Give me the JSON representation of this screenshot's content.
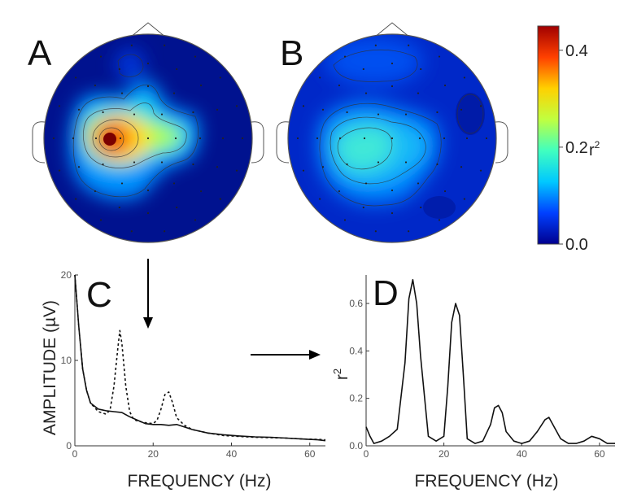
{
  "panels": {
    "A": {
      "letter": "A"
    },
    "B": {
      "letter": "B"
    },
    "C": {
      "letter": "C"
    },
    "D": {
      "letter": "D"
    }
  },
  "colorbar": {
    "ticks": [
      "0.4",
      "0.2",
      "0.0"
    ],
    "tick_values": [
      0.4,
      0.2,
      0.0
    ],
    "range": [
      0.0,
      0.45
    ],
    "label": "r",
    "label_sup": "2",
    "colors": [
      "#00008f",
      "#0040ff",
      "#00c8ff",
      "#40ffbf",
      "#c0ff40",
      "#ffd000",
      "#ff4000",
      "#a00000"
    ]
  },
  "chart_data": [
    {
      "type": "heatmap",
      "panel": "A",
      "description_kind": "scalp topography",
      "peak_value": 0.45
    },
    {
      "type": "heatmap",
      "panel": "B",
      "description_kind": "scalp topography",
      "peak_value": 0.25
    },
    {
      "type": "line",
      "panel": "C",
      "xlabel": "FREQUENCY (Hz)",
      "ylabel": "AMPLITUDE (µV)",
      "xlim": [
        0,
        64
      ],
      "ylim": [
        0,
        20
      ],
      "xticks": [
        0,
        20,
        40,
        60
      ],
      "xtick_labels": [
        "0",
        "20",
        "40",
        "60"
      ],
      "yticks": [
        0,
        10,
        20
      ],
      "ytick_labels": [
        "0",
        "10",
        "20"
      ],
      "series": [
        {
          "style": "solid",
          "x": [
            0,
            1,
            2,
            3,
            4,
            6,
            8,
            10,
            12,
            14,
            16,
            18,
            20,
            22,
            24,
            26,
            28,
            30,
            34,
            38,
            42,
            46,
            50,
            54,
            58,
            62,
            64
          ],
          "values": [
            20,
            14,
            9,
            6.5,
            5,
            4.3,
            4.1,
            4.0,
            3.9,
            3.4,
            3.0,
            2.6,
            2.5,
            2.5,
            2.4,
            2.5,
            2.2,
            1.9,
            1.5,
            1.3,
            1.15,
            1.05,
            1.0,
            0.9,
            0.8,
            0.7,
            0.6
          ]
        },
        {
          "style": "dashed",
          "x": [
            0,
            1,
            2,
            3,
            4,
            6,
            8,
            9,
            10,
            11,
            11.5,
            12,
            13,
            14,
            15,
            16,
            18,
            20,
            21,
            22,
            23,
            24,
            25,
            26,
            28,
            30,
            34,
            38,
            42,
            46,
            50,
            54,
            58,
            62,
            64
          ],
          "values": [
            20,
            14,
            9,
            6.5,
            5,
            4.0,
            3.7,
            4.2,
            7.0,
            11.5,
            13.5,
            12.0,
            7.0,
            4.0,
            3.1,
            2.9,
            2.7,
            2.6,
            3.0,
            4.3,
            6.0,
            6.3,
            5.0,
            3.3,
            2.4,
            1.9,
            1.5,
            1.2,
            1.1,
            1.0,
            0.95,
            0.9,
            0.8,
            0.75,
            0.7
          ]
        }
      ]
    },
    {
      "type": "line",
      "panel": "D",
      "xlabel": "FREQUENCY (Hz)",
      "ylabel": "r",
      "ylabel_sup": "2",
      "xlim": [
        0,
        64
      ],
      "ylim": [
        0,
        0.72
      ],
      "xticks": [
        0,
        20,
        40,
        60
      ],
      "xtick_labels": [
        "0",
        "20",
        "40",
        "60"
      ],
      "yticks": [
        0,
        0.2,
        0.4,
        0.6
      ],
      "ytick_labels": [
        "0.0",
        "0.2",
        "0.4",
        "0.6"
      ],
      "series": [
        {
          "style": "solid",
          "x": [
            0,
            1,
            2,
            4,
            6,
            8,
            10,
            11,
            12,
            13,
            14,
            16,
            18,
            20,
            21,
            22,
            23,
            24,
            25,
            26,
            28,
            30,
            32,
            33,
            34,
            35,
            36,
            38,
            40,
            42,
            44,
            46,
            47,
            48,
            50,
            52,
            54,
            56,
            58,
            60,
            62,
            64
          ],
          "values": [
            0.08,
            0.04,
            0.01,
            0.02,
            0.04,
            0.07,
            0.35,
            0.62,
            0.7,
            0.6,
            0.38,
            0.04,
            0.02,
            0.04,
            0.25,
            0.52,
            0.6,
            0.55,
            0.3,
            0.03,
            0.01,
            0.02,
            0.09,
            0.16,
            0.17,
            0.14,
            0.06,
            0.02,
            0.01,
            0.02,
            0.06,
            0.11,
            0.12,
            0.09,
            0.03,
            0.01,
            0.01,
            0.02,
            0.04,
            0.03,
            0.01,
            0.01
          ]
        }
      ]
    }
  ]
}
